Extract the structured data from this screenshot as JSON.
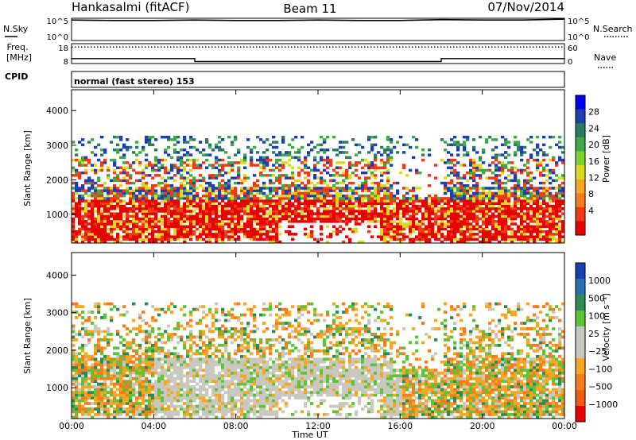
{
  "header": {
    "station": "Hankasalmi (fitACF)",
    "beam": "Beam 11",
    "date": "07/Nov/2014"
  },
  "strip_labels": {
    "nsky": "N.Sky",
    "nsearch": "N.Search",
    "freq_line1": "Freq.",
    "freq_line2": "[MHz]",
    "nave": "Nave",
    "cpid": "CPID",
    "cpid_value": "normal (fast stereo) 153",
    "noise_left_ticks": [
      "10^5",
      "10^0"
    ],
    "noise_right_ticks": [
      "10^5",
      "10^0"
    ],
    "freq_left_ticks": [
      "18",
      "8"
    ],
    "freq_right_ticks": [
      "60",
      "0"
    ]
  },
  "axes": {
    "ylabel": "Slant Range [km]",
    "xlabel": "Time UT",
    "yticks": [
      "4000",
      "3000",
      "2000",
      "1000"
    ],
    "xticks": [
      "00:00",
      "04:00",
      "08:00",
      "12:00",
      "16:00",
      "20:00",
      "00:00"
    ]
  },
  "colorbars": {
    "power": {
      "label": "Power [dB]",
      "ticks": [
        "28",
        "24",
        "20",
        "16",
        "12",
        "8",
        "4"
      ],
      "colors": [
        "#0000ee",
        "#1f3fae",
        "#2d7a63",
        "#3fa84a",
        "#7fd12e",
        "#ddd820",
        "#f5a623",
        "#f57c1f",
        "#ef3a14",
        "#e60000"
      ]
    },
    "velocity": {
      "label": "Velocity [m s⁻¹]",
      "ticks": [
        "1000",
        "500",
        "100",
        "25",
        "−25",
        "−100",
        "−500",
        "−1000"
      ],
      "colors": [
        "#1a3fb0",
        "#2c6fb0",
        "#2d8a55",
        "#5ec23a",
        "#c8c8c0",
        "#c8c8c0",
        "#f5a623",
        "#f57c1f",
        "#ef5a14",
        "#e60000"
      ]
    }
  },
  "chart_data": [
    {
      "type": "line",
      "title": "",
      "xlabel": "",
      "ylabel": "N.Sky",
      "description_series": "noise level",
      "x": [
        0,
        2,
        4,
        6,
        8,
        10,
        12,
        14,
        16,
        18,
        20,
        22,
        24
      ],
      "y_log10": [
        4.6,
        4.5,
        4.5,
        4.6,
        4.5,
        4.5,
        4.6,
        4.5,
        4.5,
        4.7,
        4.6,
        4.6,
        4.8
      ],
      "ylim": [
        0,
        5
      ]
    },
    {
      "type": "line",
      "ylabel": "Freq. [MHz]",
      "x": [
        0,
        6,
        6,
        18,
        18,
        24
      ],
      "freq_mhz": [
        10.5,
        10.5,
        9.0,
        9.0,
        10.5,
        10.5
      ],
      "nave_level": 50,
      "ylim": [
        8,
        18
      ],
      "y2lim": [
        0,
        60
      ]
    },
    {
      "type": "heatmap",
      "ylabel": "Slant Range [km]",
      "xlabel": "",
      "x_range_hours": [
        0,
        24
      ],
      "ylim": [
        180,
        4600
      ],
      "colorbar": "Power [dB]",
      "zrange": [
        0,
        30
      ],
      "grid": false
    },
    {
      "type": "heatmap",
      "ylabel": "Slant Range [km]",
      "xlabel": "Time UT",
      "x_range_hours": [
        0,
        24
      ],
      "ylim": [
        180,
        4600
      ],
      "colorbar": "Velocity [m s⁻¹]",
      "zrange": [
        -1000,
        1000
      ],
      "grid": false
    }
  ]
}
